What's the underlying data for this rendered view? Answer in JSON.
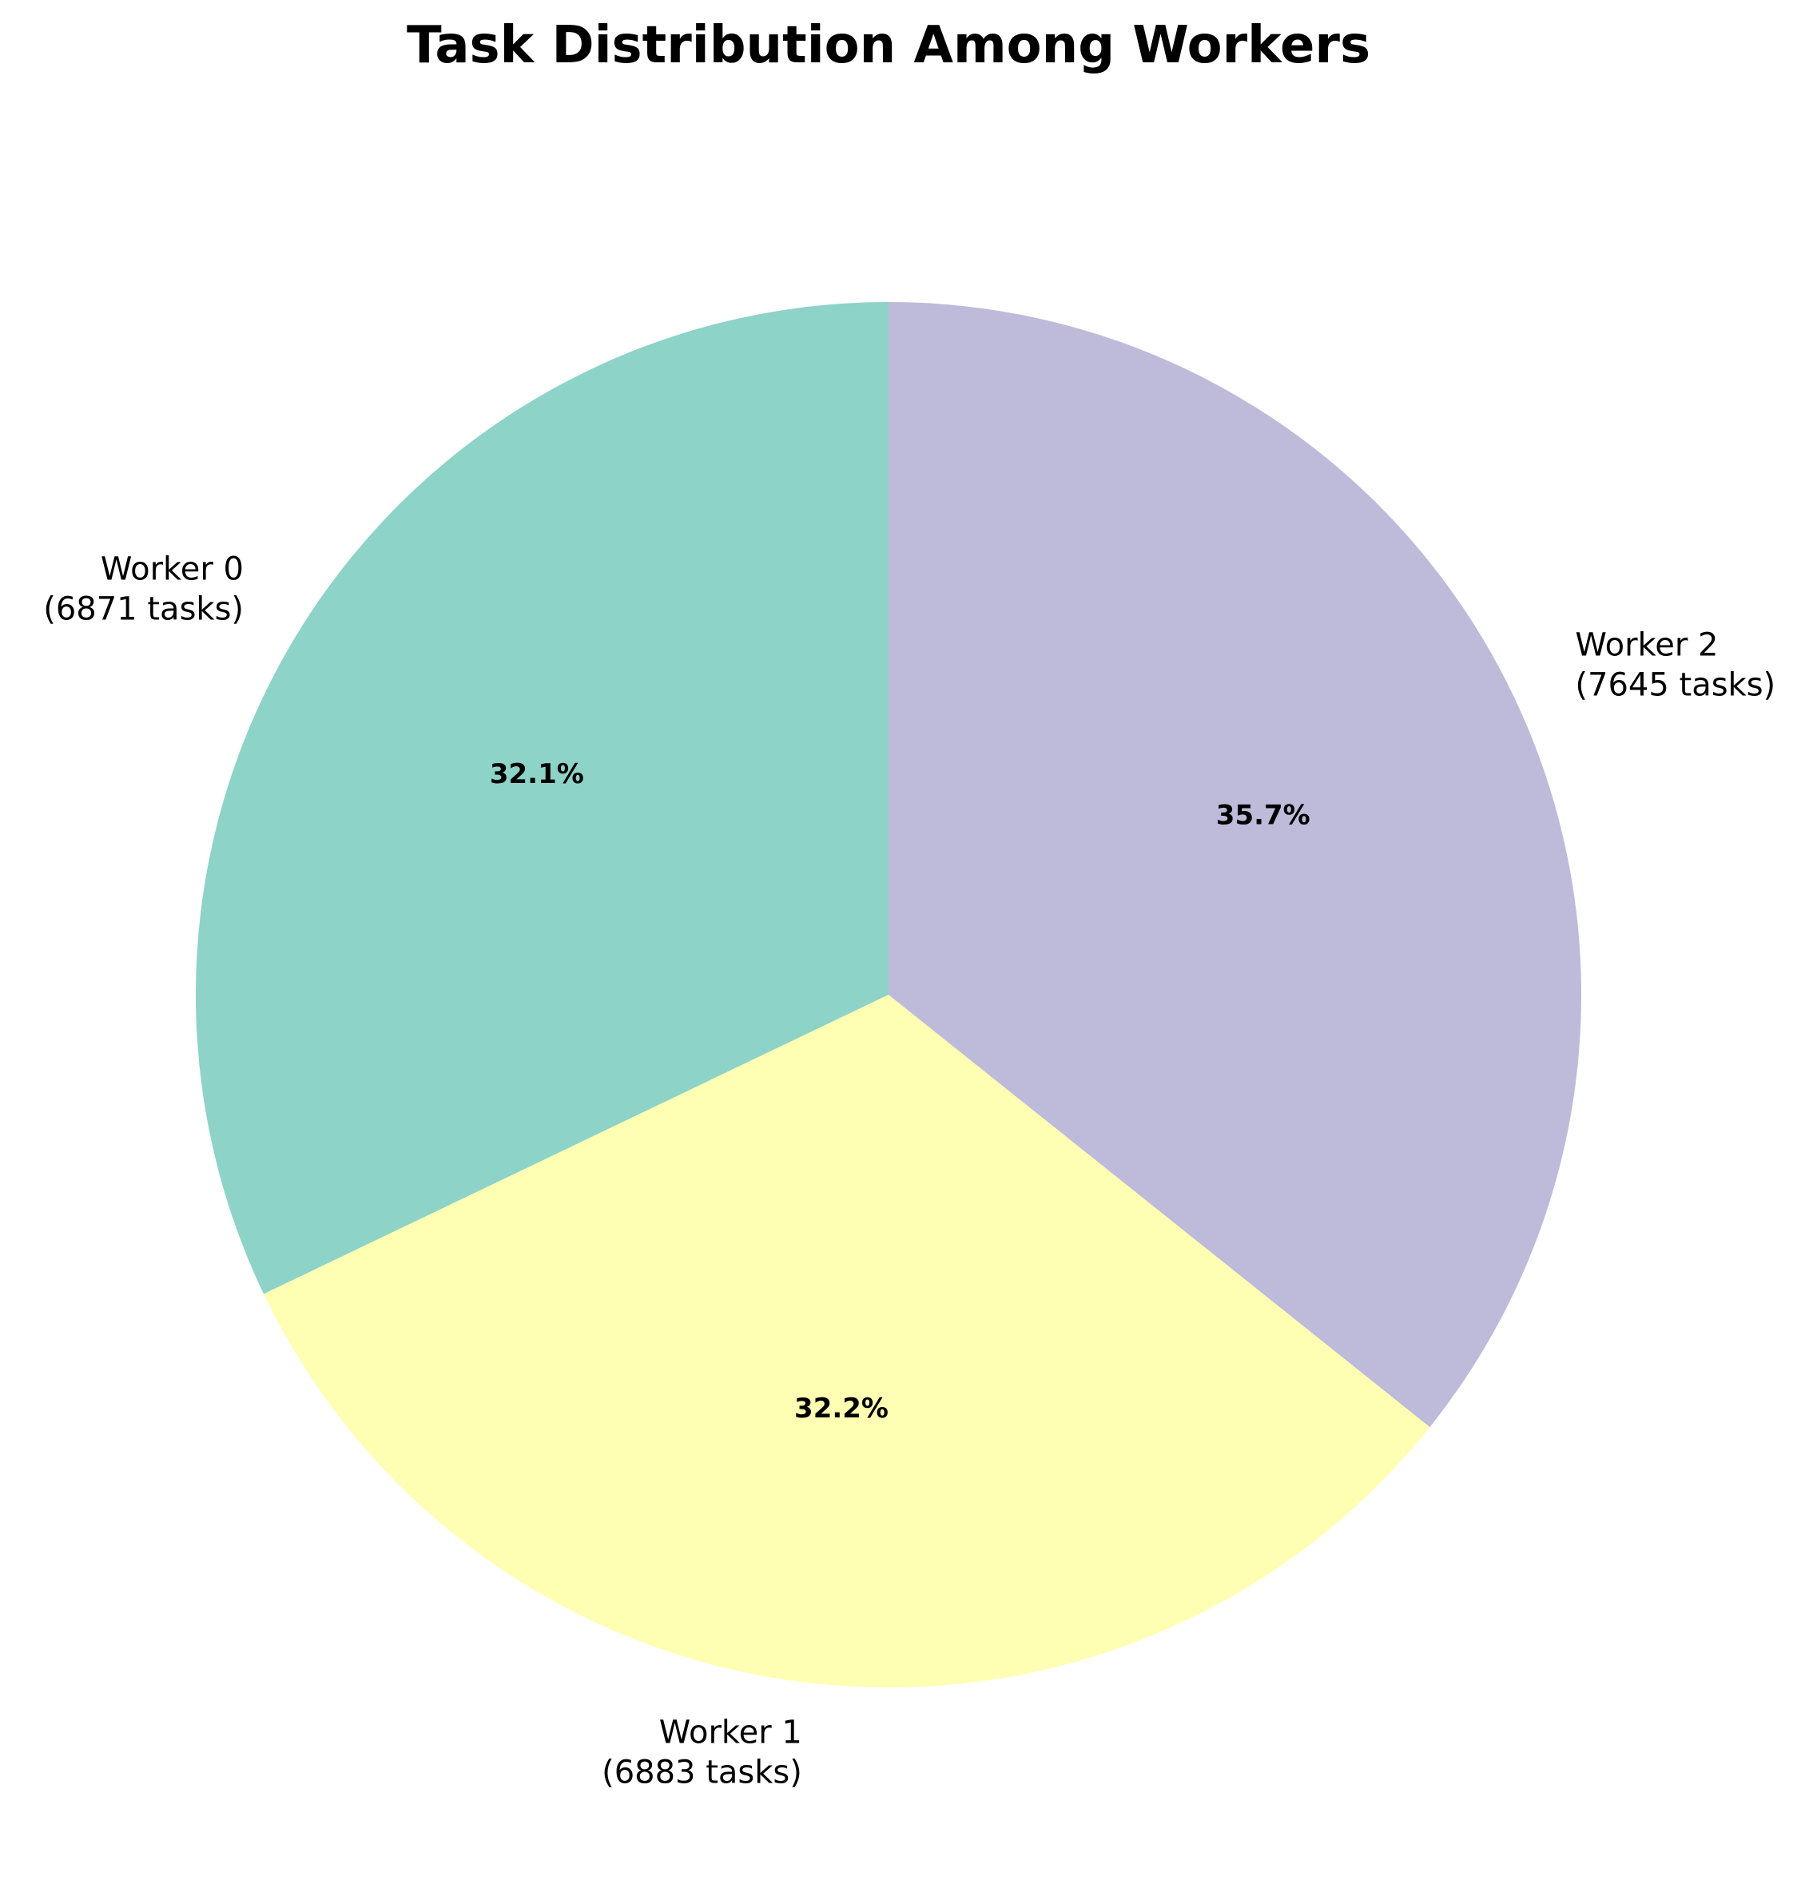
{
  "chart_data": {
    "type": "pie",
    "title": "Task Distribution Among Workers",
    "start_angle_deg": 90,
    "direction": "counterclockwise",
    "slices": [
      {
        "name": "Worker 0",
        "value": 6871,
        "label_lines": [
          "Worker 0",
          "(6871 tasks)"
        ],
        "pct_label": "32.1%",
        "color": "#8dd3c7"
      },
      {
        "name": "Worker 1",
        "value": 6883,
        "label_lines": [
          "Worker 1",
          "(6883 tasks)"
        ],
        "pct_label": "32.2%",
        "color": "#ffffb3"
      },
      {
        "name": "Worker 2",
        "value": 7645,
        "label_lines": [
          "Worker 2",
          "(7645 tasks)"
        ],
        "pct_label": "35.7%",
        "color": "#bebada"
      }
    ]
  }
}
